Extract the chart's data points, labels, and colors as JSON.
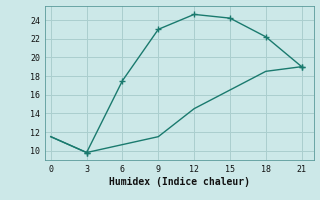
{
  "title": "",
  "xlabel": "Humidex (Indice chaleur)",
  "background_color": "#cce8e8",
  "grid_color": "#aacece",
  "line_color": "#1a7a6e",
  "line1_x": [
    0,
    3,
    6,
    9,
    12,
    15,
    18,
    21
  ],
  "line1_y": [
    11.5,
    9.8,
    17.5,
    23.0,
    24.6,
    24.2,
    22.2,
    19.0
  ],
  "line2_x": [
    0,
    3,
    9,
    12,
    15,
    18,
    21
  ],
  "line2_y": [
    11.5,
    9.8,
    11.5,
    14.5,
    16.5,
    18.5,
    19.0
  ],
  "xlim": [
    -0.5,
    22
  ],
  "ylim": [
    9,
    25.5
  ],
  "xticks": [
    0,
    3,
    6,
    9,
    12,
    15,
    18,
    21
  ],
  "yticks": [
    10,
    12,
    14,
    16,
    18,
    20,
    22,
    24
  ],
  "marker": "+",
  "markersize": 4,
  "linewidth": 1.0
}
